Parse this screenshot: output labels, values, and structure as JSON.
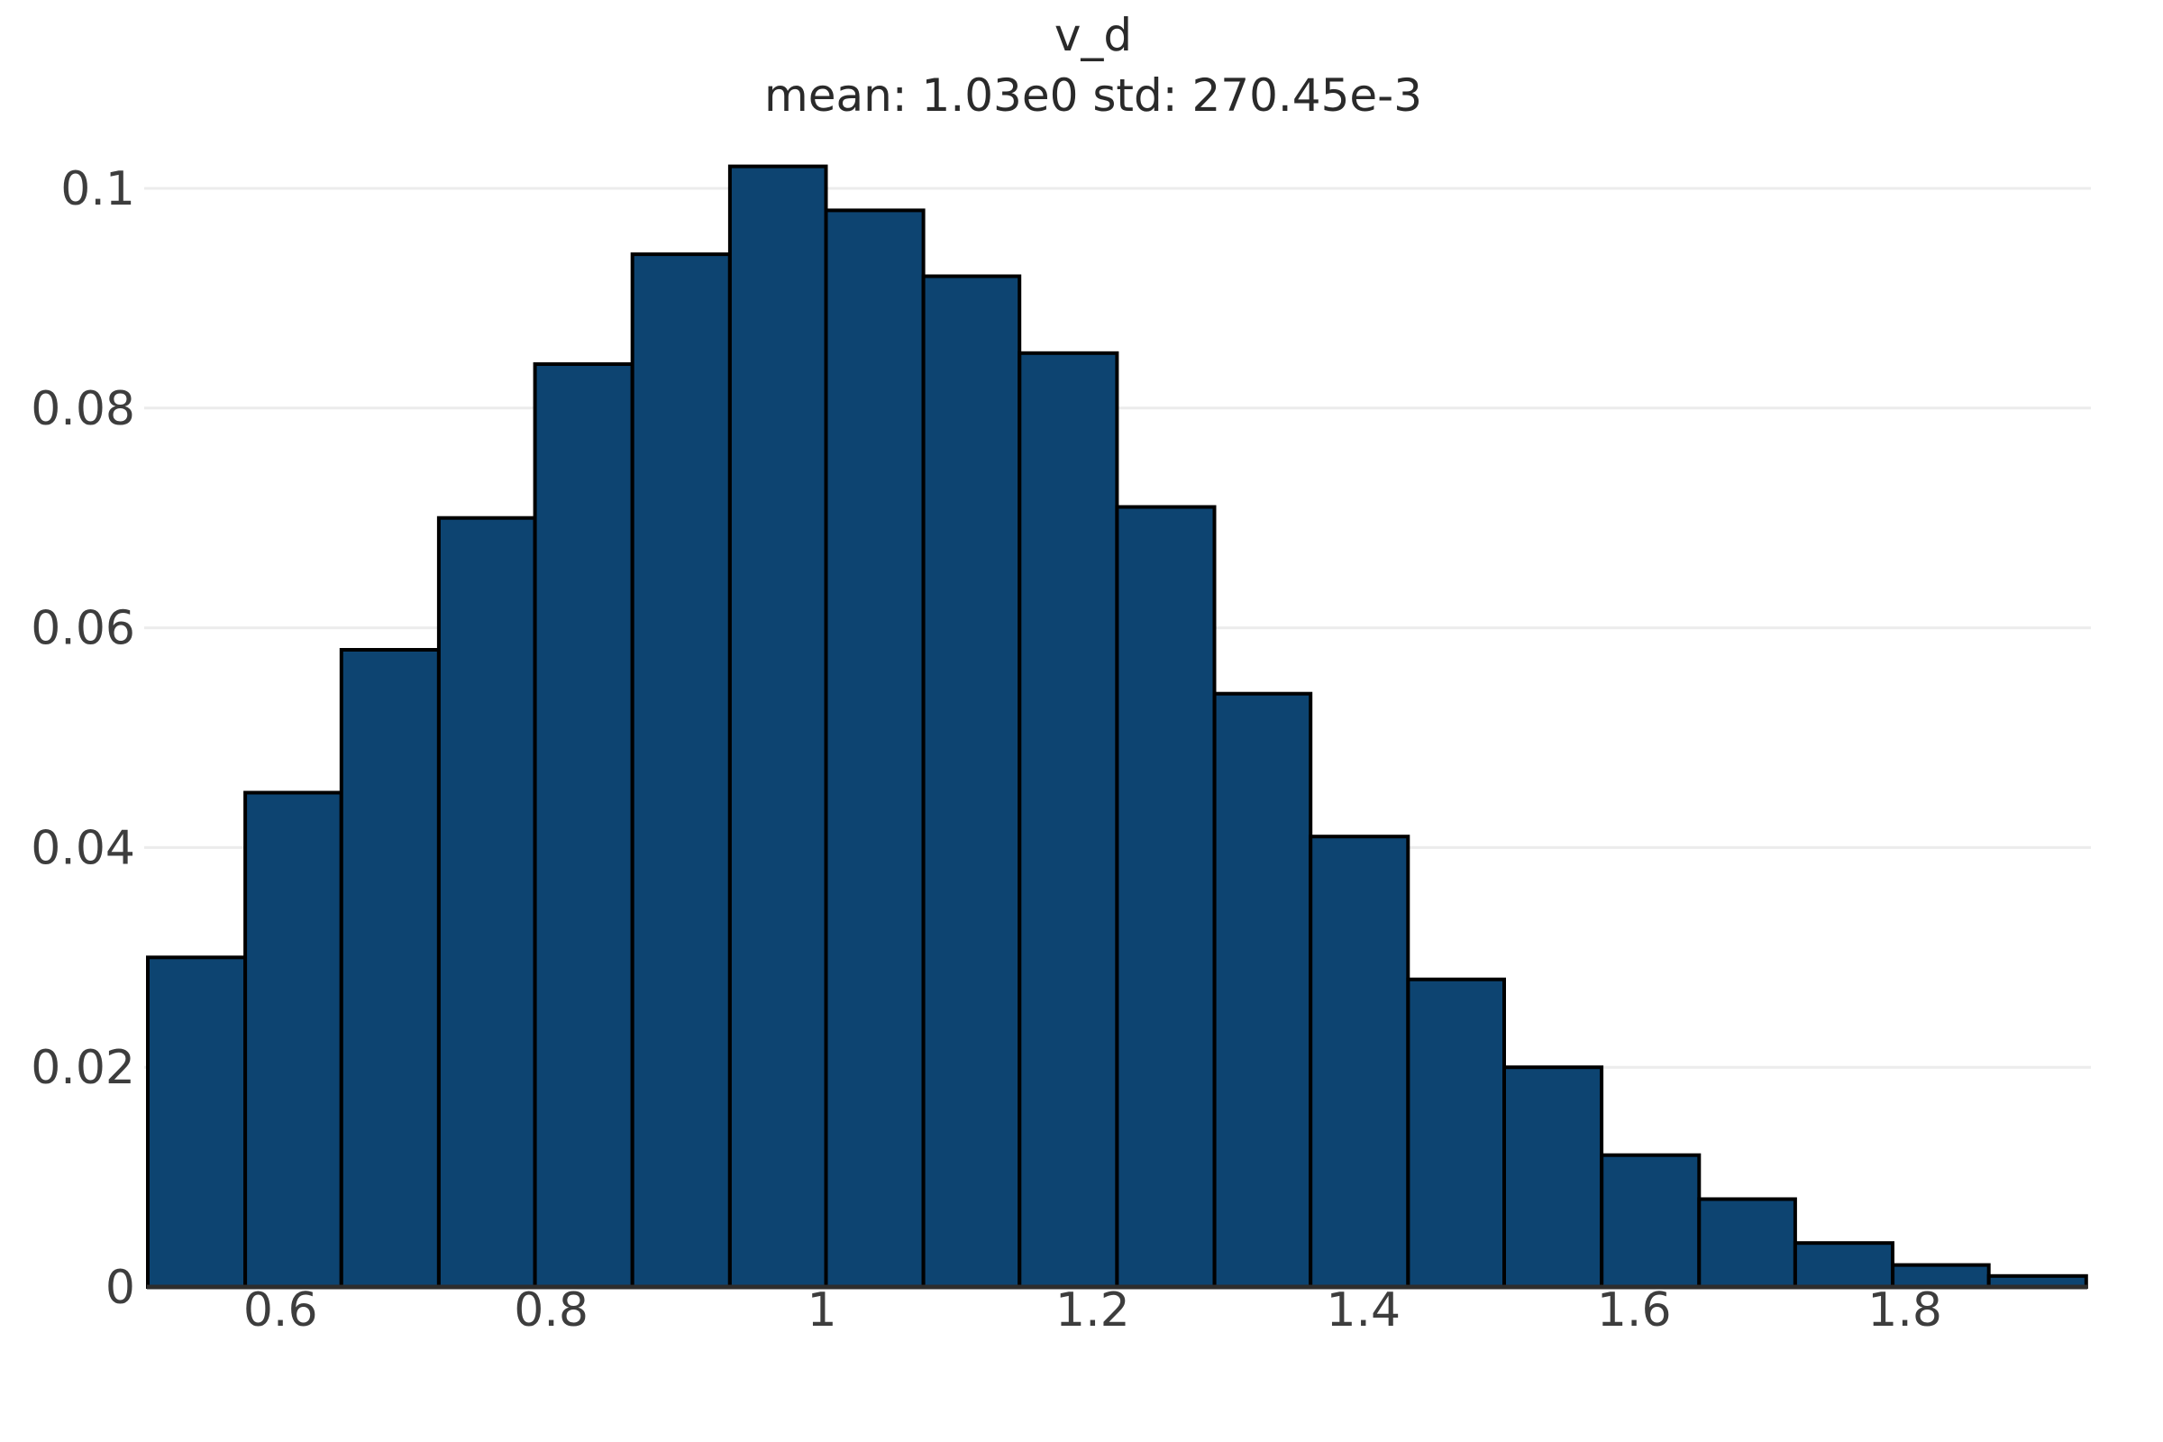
{
  "chart": {
    "title": "v_d",
    "subtitle": "mean: 1.03e0 std: 270.45e-3"
  },
  "chart_data": {
    "type": "bar",
    "subtype": "histogram",
    "title": "v_d",
    "subtitle": "mean: 1.03e0 std: 270.45e-3",
    "variable": "v_d",
    "mean": "1.03e0",
    "std": "270.45e-3",
    "bin_edges": [
      0.502,
      0.574,
      0.645,
      0.717,
      0.788,
      0.86,
      0.932,
      1.003,
      1.075,
      1.146,
      1.218,
      1.29,
      1.361,
      1.433,
      1.504,
      1.576,
      1.648,
      1.719,
      1.791,
      1.862,
      1.934
    ],
    "values": [
      0.03,
      0.045,
      0.058,
      0.07,
      0.084,
      0.094,
      0.102,
      0.098,
      0.092,
      0.085,
      0.071,
      0.054,
      0.041,
      0.028,
      0.02,
      0.012,
      0.008,
      0.004,
      0.002,
      0.001
    ],
    "xlabel": "",
    "ylabel": "",
    "x_tick_labels": [
      "0.6",
      "0.8",
      "1",
      "1.2",
      "1.4",
      "1.6",
      "1.8"
    ],
    "x_tick_values": [
      0.6,
      0.8,
      1.0,
      1.2,
      1.4,
      1.6,
      1.8
    ],
    "y_tick_labels": [
      "0",
      "0.02",
      "0.04",
      "0.06",
      "0.08",
      "0.1"
    ],
    "y_tick_values": [
      0,
      0.02,
      0.04,
      0.06,
      0.08,
      0.1
    ],
    "xlim": [
      0.501,
      1.94
    ],
    "ylim": [
      0,
      0.105
    ],
    "grid": "horizontal-only",
    "legend_position": "none",
    "colors": {
      "bar_fill": "#0d4471",
      "bar_edge": "#000000",
      "grid": "#ececec",
      "axis": "#2d2d2d",
      "tick_text": "#3d3d3d",
      "title_text": "#2a2a2a",
      "background": "#ffffff"
    }
  }
}
